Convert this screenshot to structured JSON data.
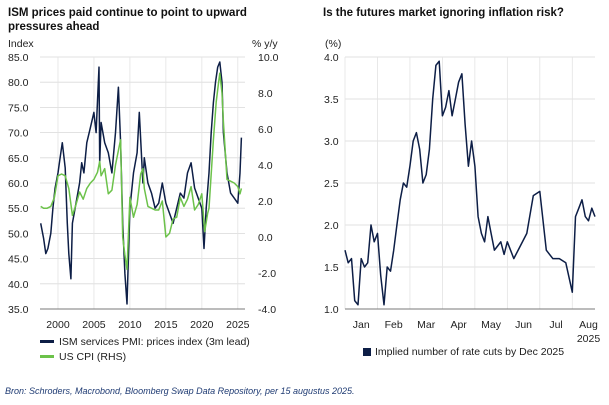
{
  "chart_data": [
    {
      "type": "line",
      "title": "ISM prices paid continue to point to upward pressures ahead",
      "ylabel_left": "Index",
      "ylabel_right": "% y/y",
      "ylim_left": [
        35,
        85
      ],
      "yticks_left": [
        "35.0",
        "40.0",
        "45.0",
        "50.0",
        "55.0",
        "60.0",
        "65.0",
        "70.0",
        "75.0",
        "80.0",
        "85.0"
      ],
      "ylim_right": [
        -4,
        10
      ],
      "yticks_right": [
        "-4.0",
        "-2.0",
        "0.0",
        "2.0",
        "4.0",
        "6.0",
        "8.0",
        "10.0"
      ],
      "xlim": [
        1997.5,
        2026.0
      ],
      "xticks": [
        "2000",
        "2005",
        "2010",
        "2015",
        "2020",
        "2025"
      ],
      "grid": true,
      "legend_position": "bottom-left",
      "series": [
        {
          "name": "ISM services PMI: prices index (3m lead)",
          "axis": "left",
          "color": "#0d1e46",
          "x": [
            1997.6,
            1998.0,
            1998.3,
            1998.6,
            1999.0,
            1999.3,
            1999.6,
            2000.0,
            2000.3,
            2000.6,
            2001.0,
            2001.3,
            2001.5,
            2001.8,
            2002.0,
            2002.5,
            2003.0,
            2003.3,
            2003.6,
            2004.0,
            2004.5,
            2005.0,
            2005.3,
            2005.7,
            2005.8,
            2006.0,
            2006.5,
            2007.0,
            2007.5,
            2008.0,
            2008.4,
            2008.7,
            2009.0,
            2009.3,
            2009.6,
            2010.0,
            2010.5,
            2011.0,
            2011.3,
            2011.8,
            2012.0,
            2012.5,
            2013.0,
            2013.5,
            2014.0,
            2014.5,
            2015.0,
            2015.5,
            2016.0,
            2016.5,
            2017.0,
            2017.5,
            2018.0,
            2018.5,
            2019.0,
            2019.5,
            2020.0,
            2020.3,
            2020.6,
            2021.0,
            2021.3,
            2021.6,
            2021.9,
            2022.2,
            2022.5,
            2022.8,
            2023.0,
            2023.5,
            2024.0,
            2024.5,
            2025.0,
            2025.3,
            2025.5
          ],
          "values": [
            52,
            49,
            46,
            47,
            50,
            55,
            59,
            62,
            65,
            68,
            63,
            52,
            46,
            41,
            52,
            56,
            60,
            64,
            62,
            68,
            71,
            74,
            70,
            83,
            64,
            72,
            68,
            66,
            62,
            70,
            79,
            68,
            52,
            42,
            36,
            55,
            62,
            66,
            74,
            60,
            65,
            60,
            58,
            55,
            56,
            60,
            56,
            54,
            52,
            55,
            58,
            57,
            62,
            64,
            59,
            57,
            55,
            47,
            55,
            62,
            70,
            76,
            80,
            83,
            84,
            80,
            70,
            62,
            58,
            57,
            56,
            62,
            69
          ]
        },
        {
          "name": "US CPI (RHS)",
          "axis": "right",
          "color": "#6cc24a",
          "x": [
            1997.6,
            1998.0,
            1998.5,
            1999.0,
            1999.5,
            2000.0,
            2000.5,
            2001.0,
            2001.5,
            2002.0,
            2002.5,
            2003.0,
            2003.5,
            2004.0,
            2004.5,
            2005.0,
            2005.5,
            2005.8,
            2006.0,
            2006.5,
            2007.0,
            2007.5,
            2008.0,
            2008.5,
            2008.7,
            2009.0,
            2009.3,
            2009.6,
            2010.0,
            2010.5,
            2011.0,
            2011.5,
            2011.8,
            2012.0,
            2012.5,
            2013.0,
            2013.5,
            2014.0,
            2014.5,
            2015.0,
            2015.5,
            2016.0,
            2016.5,
            2017.0,
            2017.5,
            2018.0,
            2018.5,
            2019.0,
            2019.5,
            2020.0,
            2020.4,
            2020.8,
            2021.0,
            2021.3,
            2021.6,
            2022.0,
            2022.3,
            2022.5,
            2022.8,
            2023.0,
            2023.5,
            2024.0,
            2024.5,
            2025.0,
            2025.3,
            2025.5
          ],
          "values": [
            1.7,
            1.6,
            1.6,
            1.7,
            2.2,
            3.4,
            3.5,
            3.4,
            2.7,
            1.2,
            1.8,
            2.5,
            2.1,
            2.7,
            3.0,
            3.2,
            3.6,
            4.2,
            3.4,
            3.8,
            2.4,
            2.6,
            4.0,
            5.0,
            5.4,
            0.0,
            -1.0,
            -1.8,
            2.2,
            1.1,
            1.8,
            3.5,
            3.8,
            2.7,
            1.7,
            1.6,
            1.5,
            1.5,
            2.0,
            0.0,
            0.2,
            1.0,
            1.1,
            2.2,
            1.7,
            2.1,
            2.8,
            1.5,
            1.8,
            2.4,
            0.3,
            1.3,
            1.6,
            3.5,
            5.4,
            7.5,
            8.5,
            9.1,
            8.0,
            6.4,
            3.2,
            3.1,
            3.0,
            2.8,
            2.4,
            2.7
          ]
        }
      ]
    },
    {
      "type": "line",
      "title": "Is the futures market ignoring inflation risk?",
      "ylabel": "(%)",
      "ylim": [
        1.0,
        4.0
      ],
      "yticks": [
        "1.0",
        "1.5",
        "2.0",
        "2.5",
        "3.0",
        "3.5",
        "4.0"
      ],
      "xlim": [
        0,
        7.7
      ],
      "xticks": [
        "Jan",
        "Feb",
        "Mar",
        "Apr",
        "May",
        "Jun",
        "Jul",
        "Aug"
      ],
      "xticks_secondary": [
        "",
        "",
        "",
        "",
        "",
        "",
        "",
        "2025"
      ],
      "grid": true,
      "legend_position": "bottom",
      "series": [
        {
          "name": "Implied number of rate cuts by Dec 2025",
          "color": "#0d1e46",
          "x": [
            0.0,
            0.1,
            0.2,
            0.3,
            0.4,
            0.5,
            0.6,
            0.7,
            0.8,
            0.9,
            1.0,
            1.1,
            1.2,
            1.3,
            1.4,
            1.5,
            1.6,
            1.7,
            1.8,
            1.9,
            2.0,
            2.1,
            2.2,
            2.3,
            2.4,
            2.5,
            2.6,
            2.7,
            2.8,
            2.9,
            3.0,
            3.1,
            3.2,
            3.3,
            3.4,
            3.5,
            3.6,
            3.7,
            3.8,
            3.9,
            4.0,
            4.1,
            4.2,
            4.3,
            4.4,
            4.5,
            4.6,
            4.7,
            4.8,
            4.9,
            5.0,
            5.2,
            5.4,
            5.6,
            5.8,
            6.0,
            6.2,
            6.4,
            6.6,
            6.8,
            7.0,
            7.1,
            7.2,
            7.3,
            7.4,
            7.5,
            7.6,
            7.7
          ],
          "values": [
            1.7,
            1.55,
            1.6,
            1.1,
            1.05,
            1.6,
            1.5,
            1.55,
            2.0,
            1.8,
            1.9,
            1.4,
            1.05,
            1.5,
            1.45,
            1.7,
            2.0,
            2.3,
            2.5,
            2.45,
            2.7,
            3.0,
            3.1,
            2.9,
            2.5,
            2.6,
            2.9,
            3.5,
            3.9,
            3.95,
            3.3,
            3.4,
            3.6,
            3.3,
            3.5,
            3.7,
            3.8,
            3.2,
            2.7,
            3.0,
            2.7,
            2.1,
            1.9,
            1.8,
            2.1,
            1.9,
            1.7,
            1.75,
            1.8,
            1.65,
            1.8,
            1.6,
            1.75,
            1.9,
            2.35,
            2.4,
            1.7,
            1.6,
            1.6,
            1.55,
            1.2,
            2.1,
            2.2,
            2.3,
            2.1,
            2.05,
            2.2,
            2.1
          ]
        }
      ]
    }
  ],
  "source_text": "Bron: Schroders, Macrobond, Bloomberg Swap Data Repository, per 15 augustus 2025."
}
